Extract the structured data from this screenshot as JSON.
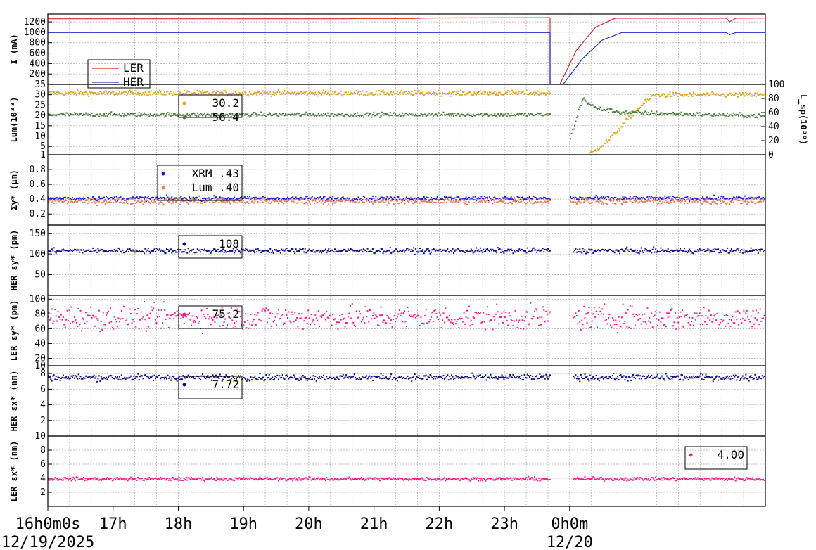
{
  "chart_data": [
    {
      "type": "line",
      "ylabel": "I (mA)",
      "ylim": [
        0,
        1350
      ],
      "yticks": [
        200,
        400,
        600,
        800,
        1000,
        1200
      ],
      "legend": {
        "placement": "bottom-left",
        "entries": [
          "LER",
          "HER"
        ]
      },
      "series": [
        {
          "name": "LER",
          "color": "#d62728",
          "points": [
            [
              0,
              1260
            ],
            [
              4.6,
              1260
            ],
            [
              4.75,
              1265
            ],
            [
              5.6,
              1265
            ],
            [
              5.8,
              1275
            ],
            [
              7.7,
              1280
            ],
            [
              7.7,
              0
            ],
            [
              7.85,
              0
            ],
            [
              8.1,
              650
            ],
            [
              8.4,
              1100
            ],
            [
              8.7,
              1270
            ],
            [
              10.4,
              1270
            ],
            [
              10.45,
              1200
            ],
            [
              10.55,
              1270
            ],
            [
              11.0,
              1275
            ]
          ]
        },
        {
          "name": "HER",
          "color": "#1f2fcc",
          "points": [
            [
              0,
              995
            ],
            [
              7.7,
              995
            ],
            [
              7.7,
              0
            ],
            [
              7.9,
              0
            ],
            [
              8.2,
              500
            ],
            [
              8.5,
              850
            ],
            [
              8.8,
              995
            ],
            [
              10.4,
              995
            ],
            [
              10.45,
              955
            ],
            [
              10.55,
              995
            ],
            [
              11.0,
              995
            ]
          ]
        }
      ]
    },
    {
      "type": "scatter",
      "ylabel": "Lum(10³³)",
      "ylabel_right": "L_sp(10³⁰)",
      "ylim": [
        1,
        35
      ],
      "yticks": [
        1,
        5,
        10,
        15,
        20,
        25,
        30,
        35
      ],
      "ylim_right": [
        0,
        100
      ],
      "yticks_right": [
        0,
        20,
        40,
        60,
        80,
        100
      ],
      "legend": {
        "placement": "top-left",
        "entries": [
          "30.2",
          "56.4"
        ]
      },
      "series": [
        {
          "name": "30.2",
          "color": "#e8a317",
          "axis": "left",
          "level": 30.8,
          "noise": 0.6,
          "gap": [
            7.7,
            8.3
          ],
          "recovery": [
            [
              8.3,
              1
            ],
            [
              8.6,
              8
            ],
            [
              9.0,
              22
            ],
            [
              9.3,
              30
            ],
            [
              11.0,
              29.8
            ]
          ]
        },
        {
          "name": "56.4",
          "color": "#4a7d3a",
          "axis": "right",
          "level": 57,
          "noise": 1.5,
          "gap": [
            7.7,
            8.0
          ],
          "recovery": [
            [
              8.0,
              20
            ],
            [
              8.2,
              80
            ],
            [
              8.4,
              66
            ],
            [
              8.8,
              60
            ],
            [
              11.0,
              55
            ]
          ]
        }
      ]
    },
    {
      "type": "scatter",
      "ylabel": "Σy* (μm)",
      "ylim": [
        0.05,
        1.0
      ],
      "yticks": [
        0.2,
        0.4,
        0.6,
        0.8,
        1
      ],
      "legend": {
        "placement": "top-left",
        "entries": [
          "XRM  .43",
          "Lum  .40"
        ]
      },
      "series": [
        {
          "name": "XRM  .43",
          "color": "#1a1ae6",
          "level": 0.41,
          "noise": 0.015,
          "gap": [
            7.7,
            8.0
          ]
        },
        {
          "name": "Lum  .40",
          "color": "#f07b55",
          "level": 0.37,
          "noise": 0.02,
          "gap": [
            7.7,
            8.0
          ]
        }
      ]
    },
    {
      "type": "scatter",
      "ylabel": "HER εy* (pm)",
      "ylim": [
        0,
        170
      ],
      "yticks": [
        50,
        100,
        150
      ],
      "legend": {
        "placement": "top-left",
        "entries": [
          "108"
        ]
      },
      "series": [
        {
          "name": "108",
          "color": "#0a0a8c",
          "level": 108,
          "noise": 3,
          "gap": [
            7.7,
            8.05
          ]
        }
      ]
    },
    {
      "type": "scatter",
      "ylabel": "LER εy* (pm)",
      "ylim": [
        10,
        105
      ],
      "yticks": [
        10,
        20,
        40,
        60,
        80,
        100
      ],
      "legend": {
        "placement": "top-left",
        "entries": [
          "75.2"
        ]
      },
      "series": [
        {
          "name": "75.2",
          "color": "#ff1a8c",
          "level": 75,
          "noise": 8,
          "gap": [
            7.7,
            8.05
          ]
        }
      ]
    },
    {
      "type": "scatter",
      "ylabel": "HER εx* (nm)",
      "ylim": [
        0,
        9
      ],
      "yticks": [
        2,
        4,
        6,
        8
      ],
      "legend": {
        "placement": "top-left",
        "entries": [
          "7.72"
        ]
      },
      "series": [
        {
          "name": "7.72",
          "color": "#0a0a8c",
          "level": 7.5,
          "noise": 0.2,
          "gap": [
            7.7,
            8.05
          ]
        }
      ]
    },
    {
      "type": "scatter",
      "ylabel": "LER εx* (nm)",
      "ylim": [
        0,
        10
      ],
      "yticks": [
        2,
        4,
        6,
        8,
        10
      ],
      "legend": {
        "placement": "top-right",
        "entries": [
          "4.00"
        ]
      },
      "series": [
        {
          "name": "4.00",
          "color": "#ff1a8c",
          "level": 3.9,
          "noise": 0.12,
          "gap": [
            7.7,
            8.05
          ]
        }
      ]
    }
  ],
  "x_axis": {
    "range_hours": [
      0,
      11
    ],
    "tick_labels": [
      {
        "t": 0,
        "text": "16h0m0s"
      },
      {
        "t": 1,
        "text": "17h"
      },
      {
        "t": 2,
        "text": "18h"
      },
      {
        "t": 3,
        "text": "19h"
      },
      {
        "t": 4,
        "text": "20h"
      },
      {
        "t": 5,
        "text": "21h"
      },
      {
        "t": 6,
        "text": "22h"
      },
      {
        "t": 7,
        "text": "23h"
      },
      {
        "t": 8,
        "text": "0h0m"
      }
    ],
    "date_labels": [
      {
        "t": 0,
        "text": "12/19/2025"
      },
      {
        "t": 8,
        "text": "12/20"
      }
    ]
  }
}
